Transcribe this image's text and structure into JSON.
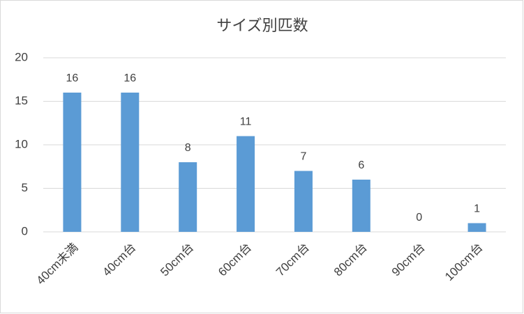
{
  "chart_data": {
    "type": "bar",
    "title": "サイズ別匹数",
    "categories": [
      "40cm未満",
      "40cm台",
      "50cm台",
      "60cm台",
      "70cm台",
      "80cm台",
      "90cm台",
      "100cm台"
    ],
    "values": [
      16,
      16,
      8,
      11,
      7,
      6,
      0,
      1
    ],
    "color": "#5b9bd5",
    "ylim": [
      0,
      20
    ],
    "yticks": [
      0,
      5,
      10,
      15,
      20
    ],
    "grid": true
  }
}
